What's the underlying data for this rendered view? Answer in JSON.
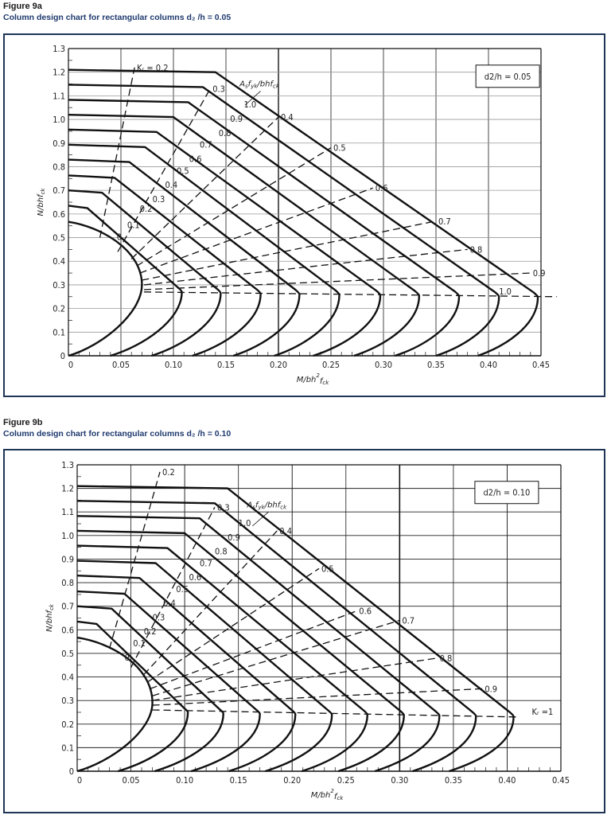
{
  "figures": [
    {
      "number": "Figure 9a",
      "caption": "Column design chart for rectangular columns d₂ /h = 0.05",
      "ratio_box": "d₂/h = 0.05"
    },
    {
      "number": "Figure 9b",
      "caption": "Column design chart for rectangular columns d₂ /h = 0.10",
      "ratio_box": "d₂/h = 0.10"
    }
  ],
  "chart_data": [
    {
      "type": "line",
      "title": "Column design chart for rectangular columns d2/h = 0.05",
      "xlabel": "M/bh²f_ck",
      "ylabel": "N/bhf_ck",
      "xlim": [
        0,
        0.45
      ],
      "ylim": [
        0,
        1.3
      ],
      "x_ticks": [
        "0",
        "0.05",
        "0.10",
        "0.15",
        "0.20",
        "0.25",
        "0.30",
        "0.35",
        "0.40",
        "0.45"
      ],
      "y_ticks": [
        "0",
        "0.1",
        "0.2",
        "0.3",
        "0.4",
        "0.5",
        "0.6",
        "0.7",
        "0.8",
        "0.9",
        "1.0",
        "1.1",
        "1.2",
        "1.3"
      ],
      "grid": true,
      "annotation": "d2/h = 0.05",
      "family_label": "A_s f_yk / bhf_ck",
      "kr_label": "K_r = 0.2",
      "series": [
        {
          "name": "0",
          "top_n": 0.567,
          "nose_m": 0.07,
          "nose_n": 0.3,
          "base_m": 0.0,
          "knee_m": 0.0
        },
        {
          "name": "0.1",
          "top_n": 0.635,
          "nose_m": 0.108,
          "nose_n": 0.27,
          "base_m": 0.04,
          "knee_m": 0.008
        },
        {
          "name": "0.2",
          "top_n": 0.7,
          "nose_m": 0.145,
          "nose_n": 0.265,
          "base_m": 0.079,
          "knee_m": 0.017
        },
        {
          "name": "0.3",
          "top_n": 0.763,
          "nose_m": 0.183,
          "nose_n": 0.262,
          "base_m": 0.118,
          "knee_m": 0.024
        },
        {
          "name": "0.4",
          "top_n": 0.83,
          "nose_m": 0.22,
          "nose_n": 0.26,
          "base_m": 0.157,
          "knee_m": 0.033
        },
        {
          "name": "0.5",
          "top_n": 0.893,
          "nose_m": 0.258,
          "nose_n": 0.258,
          "base_m": 0.196,
          "knee_m": 0.043
        },
        {
          "name": "0.6",
          "top_n": 0.957,
          "nose_m": 0.297,
          "nose_n": 0.256,
          "base_m": 0.233,
          "knee_m": 0.049
        },
        {
          "name": "0.7",
          "top_n": 1.02,
          "nose_m": 0.334,
          "nose_n": 0.254,
          "base_m": 0.272,
          "knee_m": 0.06
        },
        {
          "name": "0.8",
          "top_n": 1.083,
          "nose_m": 0.372,
          "nose_n": 0.252,
          "base_m": 0.311,
          "knee_m": 0.069
        },
        {
          "name": "0.9",
          "top_n": 1.147,
          "nose_m": 0.41,
          "nose_n": 0.25,
          "base_m": 0.35,
          "knee_m": 0.078
        },
        {
          "name": "1.0",
          "top_n": 1.21,
          "nose_m": 0.447,
          "nose_n": 0.248,
          "base_m": 0.39,
          "knee_m": 0.085
        }
      ],
      "kr_lines": [
        "0.2",
        "0.3",
        "0.4",
        "0.5",
        "0.6",
        "0.7",
        "0.8",
        "0.9",
        "1.0"
      ]
    },
    {
      "type": "line",
      "title": "Column design chart for rectangular columns d2/h = 0.10",
      "xlabel": "M/bh²f_ck",
      "ylabel": "N/bhf_ck",
      "xlim": [
        0,
        0.45
      ],
      "ylim": [
        0,
        1.3
      ],
      "x_ticks": [
        "0",
        "0.05",
        "0.10",
        "0.15",
        "0.20",
        "0.25",
        "0.30",
        "0.35",
        "0.40",
        "0.45"
      ],
      "y_ticks": [
        "0",
        "0.1",
        "0.2",
        "0.3",
        "0.4",
        "0.5",
        "0.6",
        "0.7",
        "0.8",
        "0.9",
        "1.0",
        "1.1",
        "1.2",
        "1.3"
      ],
      "grid": true,
      "annotation": "d2/h = 0.10",
      "family_label": "A_s f_yk / bhf_ck",
      "kr_label": "K_r = 1",
      "series": [
        {
          "name": "0",
          "top_n": 0.567,
          "nose_m": 0.07,
          "nose_n": 0.29,
          "base_m": 0.0,
          "knee_m": 0.0
        },
        {
          "name": "0.1",
          "top_n": 0.635,
          "nose_m": 0.103,
          "nose_n": 0.25,
          "base_m": 0.038,
          "knee_m": 0.008
        },
        {
          "name": "0.2",
          "top_n": 0.7,
          "nose_m": 0.136,
          "nose_n": 0.245,
          "base_m": 0.072,
          "knee_m": 0.017
        },
        {
          "name": "0.3",
          "top_n": 0.763,
          "nose_m": 0.17,
          "nose_n": 0.243,
          "base_m": 0.106,
          "knee_m": 0.024
        },
        {
          "name": "0.4",
          "top_n": 0.83,
          "nose_m": 0.203,
          "nose_n": 0.242,
          "base_m": 0.141,
          "knee_m": 0.033
        },
        {
          "name": "0.5",
          "top_n": 0.893,
          "nose_m": 0.237,
          "nose_n": 0.24,
          "base_m": 0.175,
          "knee_m": 0.043
        },
        {
          "name": "0.6",
          "top_n": 0.957,
          "nose_m": 0.27,
          "nose_n": 0.24,
          "base_m": 0.209,
          "knee_m": 0.049
        },
        {
          "name": "0.7",
          "top_n": 1.02,
          "nose_m": 0.304,
          "nose_n": 0.238,
          "base_m": 0.243,
          "knee_m": 0.06
        },
        {
          "name": "0.8",
          "top_n": 1.083,
          "nose_m": 0.337,
          "nose_n": 0.236,
          "base_m": 0.277,
          "knee_m": 0.069
        },
        {
          "name": "0.9",
          "top_n": 1.147,
          "nose_m": 0.371,
          "nose_n": 0.234,
          "base_m": 0.312,
          "knee_m": 0.078
        },
        {
          "name": "1.0",
          "top_n": 1.21,
          "nose_m": 0.406,
          "nose_n": 0.232,
          "base_m": 0.346,
          "knee_m": 0.085
        }
      ],
      "kr_lines": [
        "0.2",
        "0.3",
        "0.4",
        "0.5",
        "0.6",
        "0.7",
        "0.8",
        "0.9",
        "1"
      ]
    }
  ]
}
